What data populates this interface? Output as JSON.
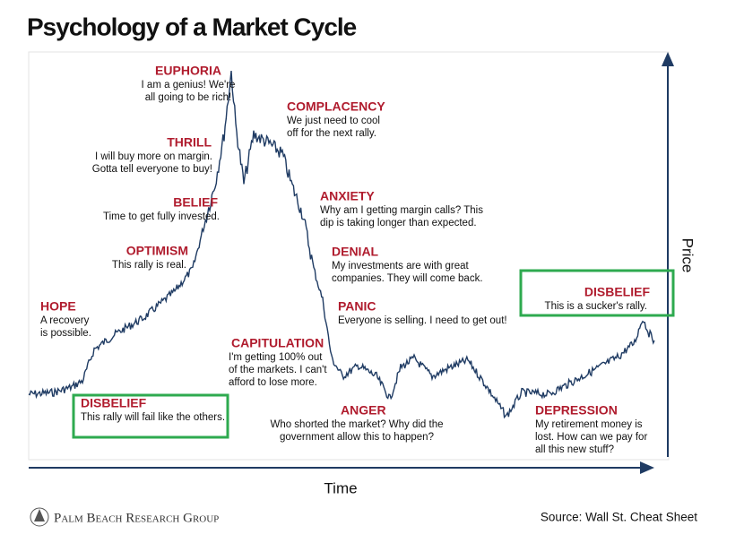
{
  "title": "Psychology of a Market Cycle",
  "axes": {
    "x_label": "Time",
    "y_label": "Price"
  },
  "annotations": [
    {
      "heading": "DISBELIEF",
      "lines": [
        "This rally will fail like the others."
      ]
    },
    {
      "heading": "HOPE",
      "lines": [
        "A recovery",
        "is possible."
      ]
    },
    {
      "heading": "OPTIMISM",
      "lines": [
        "This rally is real."
      ]
    },
    {
      "heading": "BELIEF",
      "lines": [
        "Time to get fully invested."
      ]
    },
    {
      "heading": "THRILL",
      "lines": [
        "I will buy more on margin.",
        "Gotta tell everyone to buy!"
      ]
    },
    {
      "heading": "EUPHORIA",
      "lines": [
        "I am a genius! We're",
        "all going to be rich!"
      ]
    },
    {
      "heading": "COMPLACENCY",
      "lines": [
        "We just need to cool",
        "off for the next rally."
      ]
    },
    {
      "heading": "ANXIETY",
      "lines": [
        "Why am I getting margin calls? This",
        "dip is taking longer than expected."
      ]
    },
    {
      "heading": "DENIAL",
      "lines": [
        "My investments are with great",
        "companies. They will come back."
      ]
    },
    {
      "heading": "PANIC",
      "lines": [
        "Everyone is selling. I need to get out!"
      ]
    },
    {
      "heading": "CAPITULATION",
      "lines": [
        "I'm getting 100% out",
        "of the markets. I can't",
        "afford to lose more."
      ]
    },
    {
      "heading": "ANGER",
      "lines": [
        "Who shorted the market? Why did the",
        "government allow this to happen?"
      ]
    },
    {
      "heading": "DEPRESSION",
      "lines": [
        "My retirement money is",
        "lost. How can we pay for",
        "all this new stuff?"
      ]
    },
    {
      "heading": "DISBELIEF",
      "lines": [
        "This is a sucker's rally."
      ]
    }
  ],
  "footer": {
    "logo": "Palm Beach Research Group",
    "source": "Source: Wall St. Cheat Sheet"
  }
}
